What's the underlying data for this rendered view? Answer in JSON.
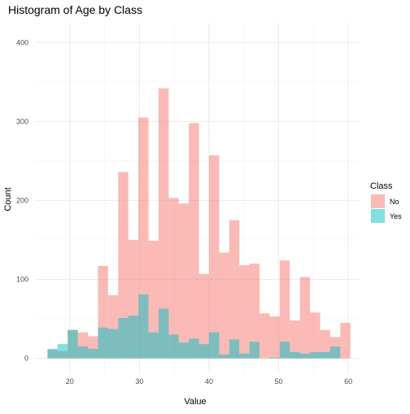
{
  "chart_data": {
    "type": "bar",
    "title": "Histogram of Age by Class",
    "xlabel": "Value",
    "ylabel": "Count",
    "xlim": [
      15,
      61.5
    ],
    "ylim": [
      -20,
      425
    ],
    "x_ticks": [
      20,
      30,
      40,
      50,
      60
    ],
    "y_ticks": [
      0,
      100,
      200,
      300,
      400
    ],
    "grid": true,
    "legend_position": "right",
    "legend": {
      "title": "Class",
      "entries": [
        {
          "label": "No",
          "color": "#F8766D"
        },
        {
          "label": "Yes",
          "color": "#00BFC4"
        }
      ]
    },
    "bin_width": 1.45,
    "bin_starts": [
      16.8,
      18.25,
      19.7,
      21.15,
      22.6,
      24.05,
      25.5,
      26.95,
      28.4,
      29.85,
      31.3,
      32.75,
      34.2,
      35.65,
      37.1,
      38.55,
      40.0,
      41.45,
      42.9,
      44.35,
      45.8,
      47.25,
      48.7,
      50.15,
      51.6,
      53.05,
      54.5,
      55.95,
      57.4,
      58.85
    ],
    "series": [
      {
        "name": "No",
        "color": "#F8766D",
        "values": [
          11,
          9,
          36,
          33,
          28,
          117,
          80,
          236,
          150,
          305,
          149,
          342,
          203,
          196,
          298,
          107,
          257,
          134,
          175,
          118,
          120,
          57,
          53,
          124,
          48,
          103,
          58,
          36,
          27,
          45
        ]
      },
      {
        "name": "Yes",
        "color": "#00BFC4",
        "values": [
          12,
          18,
          36,
          15,
          12,
          39,
          37,
          51,
          54,
          81,
          33,
          63,
          30,
          20,
          25,
          18,
          33,
          5,
          24,
          6,
          21,
          0,
          1,
          21,
          8,
          6,
          8,
          8,
          15,
          0
        ]
      }
    ]
  }
}
